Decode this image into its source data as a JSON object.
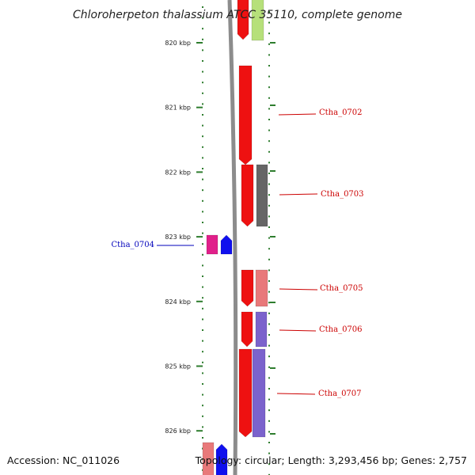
{
  "title": "Chloroherpeton thalassium ATCC 35110, complete genome",
  "footer": {
    "accession": "Accession: NC_011026",
    "summary": "Topology: circular; Length: 3,293,456 bp; Genes: 2,757"
  },
  "colors": {
    "backbone": "#8c8c8c",
    "tick": "#2e7d2e",
    "forward_cds": "#ee1111",
    "label_red": "#cc0000",
    "label_blue": "#0000bb"
  },
  "scale_ticks": [
    {
      "label": "820 kbp",
      "kbp": 820
    },
    {
      "label": "821 kbp",
      "kbp": 821
    },
    {
      "label": "822 kbp",
      "kbp": 822
    },
    {
      "label": "823 kbp",
      "kbp": 823
    },
    {
      "label": "824 kbp",
      "kbp": 824
    },
    {
      "label": "825 kbp",
      "kbp": 825
    },
    {
      "label": "826 kbp",
      "kbp": 826
    }
  ],
  "gene_labels": [
    {
      "name": "Ctha_0702",
      "strand": "+"
    },
    {
      "name": "Ctha_0703",
      "strand": "+"
    },
    {
      "name": "Ctha_0704",
      "strand": "-"
    },
    {
      "name": "Ctha_0705",
      "strand": "+"
    },
    {
      "name": "Ctha_0706",
      "strand": "+"
    },
    {
      "name": "Ctha_0707",
      "strand": "+"
    }
  ]
}
